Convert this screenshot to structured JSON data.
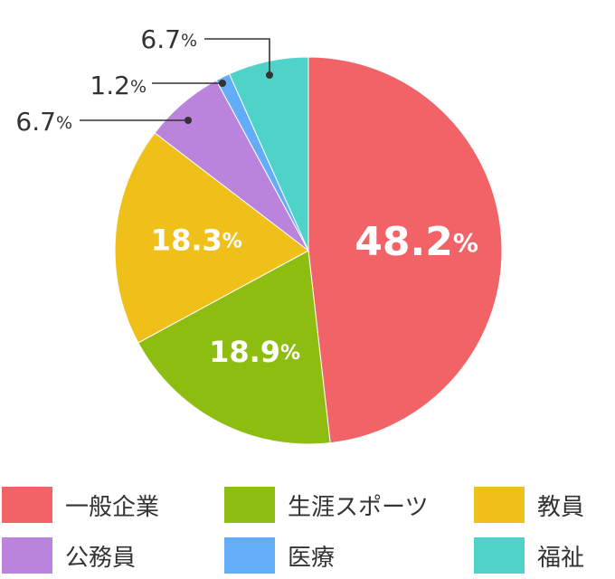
{
  "chart_data": {
    "type": "pie",
    "title": "",
    "unit": "%",
    "slices": [
      {
        "label": "一般企業",
        "value": 48.2,
        "value_text": "48.2",
        "color": "#f26368"
      },
      {
        "label": "生涯スポーツ",
        "value": 18.9,
        "value_text": "18.9",
        "color": "#8ebd12"
      },
      {
        "label": "教員",
        "value": 18.3,
        "value_text": "18.3",
        "color": "#f0c01a"
      },
      {
        "label": "公務員",
        "value": 6.7,
        "value_text": "6.7",
        "color": "#bb84dc"
      },
      {
        "label": "医療",
        "value": 1.2,
        "value_text": "1.2",
        "color": "#62acf8"
      },
      {
        "label": "福祉",
        "value": 6.7,
        "value_text": "6.7",
        "color": "#4fd3c9"
      }
    ],
    "start_angle": "12 o'clock",
    "direction": "clockwise",
    "legend_position": "bottom"
  }
}
